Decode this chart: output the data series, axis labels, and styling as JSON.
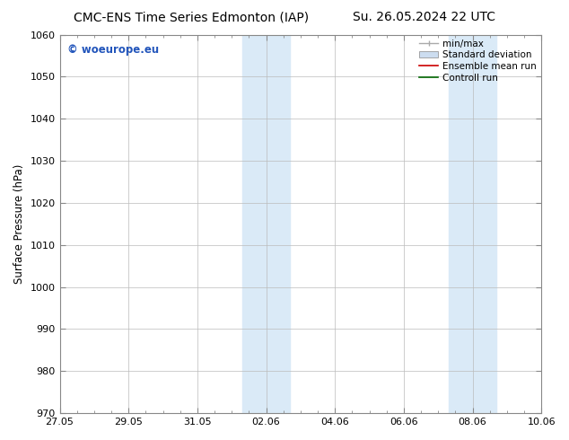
{
  "title_left": "CMC-ENS Time Series Edmonton (IAP)",
  "title_right": "Su. 26.05.2024 22 UTC",
  "ylabel": "Surface Pressure (hPa)",
  "ylim": [
    970,
    1060
  ],
  "yticks": [
    970,
    980,
    990,
    1000,
    1010,
    1020,
    1030,
    1040,
    1050,
    1060
  ],
  "xtick_labels": [
    "27.05",
    "29.05",
    "31.05",
    "02.06",
    "04.06",
    "06.06",
    "08.06",
    "10.06"
  ],
  "xmin": 0,
  "xmax": 14,
  "shade_color": "#daeaf7",
  "watermark_text": "© woeurope.eu",
  "watermark_color": "#2255bb",
  "bg_color": "#ffffff",
  "spine_color": "#888888",
  "grid_color": "#bbbbbb",
  "title_fontsize": 10,
  "axis_label_fontsize": 8.5,
  "tick_fontsize": 8,
  "legend_fontsize": 7.5,
  "minmax_color": "#aaaaaa",
  "std_color": "#ccddf0",
  "ensemble_color": "#cc0000",
  "control_color": "#006600",
  "band1_x1": 5.3,
  "band1_x2": 6.0,
  "band1b_x1": 6.0,
  "band1b_x2": 6.7,
  "band2_x1": 11.3,
  "band2_x2": 12.0,
  "band2b_x1": 12.0,
  "band2b_x2": 12.7
}
